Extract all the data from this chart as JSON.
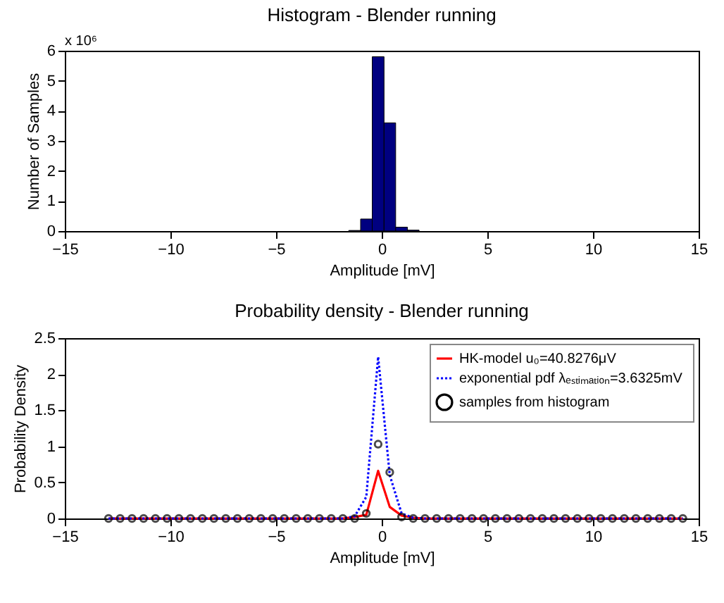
{
  "chart_data": [
    {
      "type": "histogram",
      "title": "Histogram - Blender running",
      "xlabel": "Amplitude [mV]",
      "ylabel": "Number of Samples",
      "annotations": [
        "x 10⁶"
      ],
      "bins": [
        -1.56,
        -1.0,
        -0.45,
        0.11,
        0.66,
        1.22,
        1.77
      ],
      "values": [
        0.02,
        0.4,
        5.8,
        3.6,
        0.13,
        0.03
      ],
      "color": "#000080",
      "xlim": [
        -15,
        15
      ],
      "xticks": [
        -15,
        -10,
        -5,
        0,
        5,
        10,
        15
      ],
      "ylim": [
        0,
        6
      ],
      "yticks": [
        0,
        1,
        2,
        3,
        4,
        5,
        6
      ],
      "grid": false
    },
    {
      "type": "line",
      "title": "Probability density - Blender running",
      "xlabel": "Amplitude [mV]",
      "ylabel": "Probability Density",
      "x": [
        -12.93,
        -12.38,
        -11.82,
        -11.27,
        -10.71,
        -10.16,
        -9.6,
        -9.05,
        -8.49,
        -7.94,
        -7.38,
        -6.83,
        -6.27,
        -5.72,
        -5.16,
        -4.61,
        -4.05,
        -3.5,
        -2.95,
        -2.39,
        -1.84,
        -1.28,
        -0.73,
        -0.17,
        0.38,
        0.94,
        1.49,
        2.05,
        2.6,
        3.16,
        3.71,
        4.27,
        4.82,
        5.38,
        5.93,
        6.49,
        7.04,
        7.6,
        8.15,
        8.7,
        9.26,
        9.81,
        10.37,
        10.92,
        11.48,
        12.03,
        12.59,
        13.14,
        13.7,
        14.25
      ],
      "series": [
        {
          "name": "HK-model u₀=40.8276μV",
          "type": "line",
          "color": "#ff0000",
          "line_style": "solid",
          "values": [
            0,
            0,
            0,
            0,
            0,
            0,
            0,
            0,
            0,
            0,
            0,
            0,
            0,
            0,
            0,
            0,
            0,
            0,
            0,
            0,
            0,
            0.02,
            0.05,
            0.66,
            0.16,
            0.04,
            0.01,
            0,
            0,
            0,
            0,
            0,
            0,
            0,
            0,
            0,
            0,
            0,
            0,
            0,
            0,
            0,
            0,
            0,
            0,
            0,
            0,
            0,
            0,
            0
          ]
        },
        {
          "name": "exponential pdf  λₑₛₜᵢₘₐₜᵢₒₙ=3.6325mV",
          "type": "line",
          "color": "#0000ff",
          "line_style": "dotted",
          "values": [
            0,
            0,
            0,
            0,
            0,
            0,
            0,
            0,
            0,
            0,
            0,
            0,
            0,
            0,
            0,
            0,
            0,
            0,
            0,
            0,
            0,
            0.03,
            0.3,
            2.24,
            0.6,
            0.07,
            0.01,
            0,
            0,
            0,
            0,
            0,
            0,
            0,
            0,
            0,
            0,
            0,
            0,
            0,
            0,
            0,
            0,
            0,
            0,
            0,
            0,
            0,
            0,
            0
          ]
        },
        {
          "name": "samples from histogram",
          "type": "scatter",
          "color": "#000000",
          "marker": "circle",
          "values": [
            0,
            0,
            0,
            0,
            0,
            0,
            0,
            0,
            0,
            0,
            0,
            0,
            0,
            0,
            0,
            0,
            0,
            0,
            0,
            0,
            0,
            0,
            0.07,
            1.03,
            0.64,
            0.02,
            0,
            0,
            0,
            0,
            0,
            0,
            0,
            0,
            0,
            0,
            0,
            0,
            0,
            0,
            0,
            0,
            0,
            0,
            0,
            0,
            0,
            0,
            0,
            0
          ]
        }
      ],
      "legend": "top right",
      "xlim": [
        -15,
        15
      ],
      "xticks": [
        -15,
        -10,
        -5,
        0,
        5,
        10,
        15
      ],
      "ylim": [
        0,
        2.5
      ],
      "yticks": [
        0,
        0.5,
        1,
        1.5,
        2,
        2.5
      ],
      "grid": false
    }
  ]
}
